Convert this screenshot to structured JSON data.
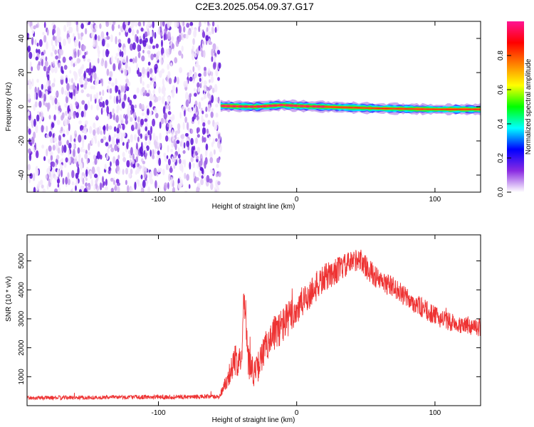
{
  "title": "C2E3.2025.054.09.37.G17",
  "chart_data": [
    {
      "type": "heatmap",
      "xlabel": "Height of straight line (km)",
      "ylabel": "Frequency (Hz)",
      "xlim": [
        -195,
        133
      ],
      "ylim": [
        -50,
        50
      ],
      "xticks": [
        -100,
        0,
        100
      ],
      "xtick_labels": [
        "-100",
        "0",
        "100"
      ],
      "yticks": [
        -40,
        -20,
        0,
        20,
        40
      ],
      "ytick_labels": [
        "-40",
        "-20",
        "0",
        "20",
        "40"
      ],
      "grid": false,
      "noise_region_x": [
        -195,
        -55
      ],
      "signal_start_x": -55,
      "signal_center_hz": [
        {
          "x": -55,
          "y": 0.5
        },
        {
          "x": -30,
          "y": 0.0
        },
        {
          "x": -10,
          "y": 1.0
        },
        {
          "x": 0,
          "y": 0.5
        },
        {
          "x": 20,
          "y": 0.0
        },
        {
          "x": 60,
          "y": -1.0
        },
        {
          "x": 100,
          "y": -1.5
        },
        {
          "x": 133,
          "y": -1.5
        }
      ],
      "colorbar": {
        "label": "Normalized spectral amplitude",
        "range": [
          0,
          1
        ],
        "ticks": [
          0.0,
          0.2,
          0.4,
          0.6,
          0.8
        ],
        "tick_labels": [
          "0.0",
          "0.2",
          "0.4",
          "0.6",
          "0.8"
        ],
        "colors": [
          "#ffffff",
          "#8a2be2",
          "#0000ff",
          "#00ffff",
          "#00ff00",
          "#ffff00",
          "#ff8000",
          "#ff0000",
          "#ff1493"
        ]
      }
    },
    {
      "type": "line",
      "xlabel": "Height of straight line (km)",
      "ylabel": "SNR (10 * v/v)",
      "xlim": [
        -195,
        133
      ],
      "ylim": [
        0,
        5900
      ],
      "xticks": [
        -100,
        0,
        100
      ],
      "xtick_labels": [
        "-100",
        "0",
        "100"
      ],
      "yticks": [
        1000,
        2000,
        3000,
        4000,
        5000
      ],
      "ytick_labels": [
        "1000",
        "2000",
        "3000",
        "4000",
        "5000"
      ],
      "grid": false,
      "color": "#ee3333",
      "series": [
        {
          "x": [
            -195,
            -150,
            -100,
            -56,
            -45,
            -40,
            -38,
            -35,
            -30,
            -20,
            -10,
            0,
            10,
            20,
            30,
            40,
            45,
            50,
            60,
            70,
            80,
            90,
            100,
            110,
            120,
            133
          ],
          "y": [
            270,
            280,
            300,
            310,
            1500,
            1700,
            4000,
            1500,
            1100,
            2300,
            2800,
            3300,
            3900,
            4400,
            4700,
            4950,
            5100,
            4800,
            4300,
            4100,
            3700,
            3400,
            3100,
            2900,
            2800,
            2700
          ],
          "noise": [
            70,
            70,
            75,
            80,
            550,
            600,
            700,
            600,
            500,
            600,
            650,
            600,
            550,
            500,
            450,
            400,
            400,
            400,
            380,
            360,
            350,
            350,
            330,
            320,
            320,
            320
          ]
        }
      ]
    }
  ]
}
